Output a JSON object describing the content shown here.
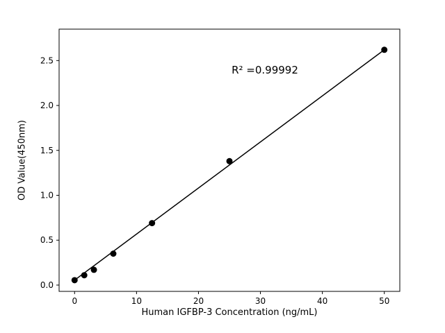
{
  "chart_data": {
    "type": "scatter",
    "title": "",
    "xlabel": "Human IGFBP-3 Concentration (ng/mL)",
    "ylabel": "OD Value(450nm)",
    "x": [
      0,
      1.56,
      3.12,
      6.25,
      12.5,
      25,
      50
    ],
    "y": [
      0.055,
      0.11,
      0.17,
      0.35,
      0.69,
      1.38,
      2.62
    ],
    "fit_line": {
      "x": [
        0,
        50
      ],
      "y": [
        0.055,
        2.62
      ]
    },
    "annotation": {
      "text": "R² =0.99992",
      "x": 31,
      "y": 2.4
    },
    "xlim": [
      -2.5,
      52.5
    ],
    "ylim": [
      -0.07,
      2.85
    ],
    "xticks": {
      "values": [
        0,
        10,
        20,
        30,
        40,
        50
      ],
      "labels": [
        "0",
        "10",
        "20",
        "30",
        "40",
        "50"
      ]
    },
    "yticks": {
      "values": [
        0.0,
        0.5,
        1.0,
        1.5,
        2.0,
        2.5
      ],
      "labels": [
        "0.0",
        "0.5",
        "1.0",
        "1.5",
        "2.0",
        "2.5"
      ]
    },
    "grid": false,
    "legend": null,
    "marker_color": "#000000",
    "line_color": "#000000",
    "axis_color": "#000000",
    "background": "#ffffff"
  }
}
